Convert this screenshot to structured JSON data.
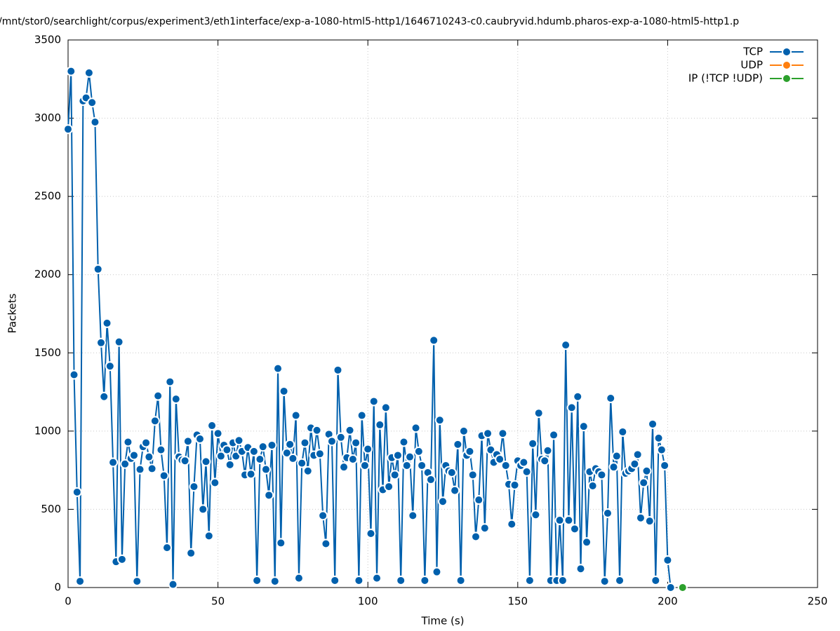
{
  "chart_data": {
    "type": "line",
    "title": "/mnt/stor0/searchlight/corpus/experiment3/eth1interface/exp-a-1080-html5-http1/1646710243-c0.caubryvid.hdumb.pharos-exp-a-1080-html5-http1.p",
    "x_label": "Time (s)",
    "y_label": "Packets",
    "xlim": [
      0,
      250
    ],
    "ylim": [
      0,
      3500
    ],
    "xticks": [
      0,
      50,
      100,
      150,
      200,
      250
    ],
    "yticks": [
      0,
      500,
      1000,
      1500,
      2000,
      2500,
      3000,
      3500
    ],
    "grid": true,
    "legend": "top-right",
    "series": [
      {
        "name": "TCP",
        "color": "#0060ad",
        "x": [
          0,
          1,
          2,
          3,
          4,
          5,
          6,
          7,
          8,
          9,
          10,
          11,
          12,
          13,
          14,
          15,
          16,
          17,
          18,
          19,
          20,
          21,
          22,
          23,
          24,
          25,
          26,
          27,
          28,
          29,
          30,
          31,
          32,
          33,
          34,
          35,
          36,
          37,
          38,
          39,
          40,
          41,
          42,
          43,
          44,
          45,
          46,
          47,
          48,
          49,
          50,
          51,
          52,
          53,
          54,
          55,
          56,
          57,
          58,
          59,
          60,
          61,
          62,
          63,
          64,
          65,
          66,
          67,
          68,
          69,
          70,
          71,
          72,
          73,
          74,
          75,
          76,
          77,
          78,
          79,
          80,
          81,
          82,
          83,
          84,
          85,
          86,
          87,
          88,
          89,
          90,
          91,
          92,
          93,
          94,
          95,
          96,
          97,
          98,
          99,
          100,
          101,
          102,
          103,
          104,
          105,
          106,
          107,
          108,
          109,
          110,
          111,
          112,
          113,
          114,
          115,
          116,
          117,
          118,
          119,
          120,
          121,
          122,
          123,
          124,
          125,
          126,
          127,
          128,
          129,
          130,
          131,
          132,
          133,
          134,
          135,
          136,
          137,
          138,
          139,
          140,
          141,
          142,
          143,
          144,
          145,
          146,
          147,
          148,
          149,
          150,
          151,
          152,
          153,
          154,
          155,
          156,
          157,
          158,
          159,
          160,
          161,
          162,
          163,
          164,
          165,
          166,
          167,
          168,
          169,
          170,
          171,
          172,
          173,
          174,
          175,
          176,
          177,
          178,
          179,
          180,
          181,
          182,
          183,
          184,
          185,
          186,
          187,
          188,
          189,
          190,
          191,
          192,
          193,
          194,
          195,
          196,
          197,
          198,
          199,
          200,
          201
        ],
        "values": [
          2930,
          3300,
          1360,
          610,
          40,
          3110,
          3130,
          3290,
          3100,
          2975,
          2035,
          1565,
          1220,
          1690,
          1415,
          800,
          165,
          1570,
          180,
          790,
          930,
          825,
          845,
          40,
          755,
          900,
          925,
          835,
          760,
          1065,
          1225,
          880,
          715,
          255,
          1315,
          20,
          1205,
          835,
          815,
          810,
          935,
          220,
          645,
          975,
          950,
          500,
          805,
          330,
          1035,
          670,
          985,
          840,
          910,
          880,
          785,
          925,
          840,
          940,
          870,
          720,
          895,
          725,
          870,
          45,
          820,
          900,
          755,
          590,
          910,
          40,
          1400,
          285,
          1255,
          860,
          915,
          825,
          1100,
          60,
          795,
          925,
          745,
          1020,
          845,
          1005,
          855,
          460,
          280,
          980,
          935,
          45,
          1390,
          960,
          770,
          830,
          1005,
          820,
          925,
          45,
          1100,
          780,
          885,
          345,
          1190,
          60,
          1040,
          625,
          1150,
          645,
          830,
          720,
          845,
          45,
          930,
          780,
          835,
          460,
          1020,
          870,
          780,
          45,
          735,
          690,
          1580,
          100,
          1070,
          550,
          780,
          745,
          735,
          620,
          915,
          45,
          1000,
          845,
          870,
          720,
          325,
          560,
          970,
          380,
          985,
          880,
          800,
          850,
          820,
          985,
          780,
          660,
          405,
          655,
          810,
          780,
          800,
          740,
          45,
          920,
          465,
          1115,
          820,
          810,
          875,
          45,
          975,
          45,
          430,
          45,
          1550,
          430,
          1150,
          375,
          1220,
          120,
          1030,
          290,
          740,
          650,
          760,
          740,
          720,
          40,
          475,
          1210,
          770,
          840,
          45,
          995,
          730,
          745,
          760,
          790,
          850,
          445,
          670,
          745,
          425,
          1045,
          45,
          955,
          880,
          780,
          175,
          0
        ]
      },
      {
        "name": "UDP",
        "color": "#ff7f0e",
        "x": [],
        "values": []
      },
      {
        "name": "IP (!TCP  !UDP)",
        "color": "#2ca02c",
        "x": [
          205
        ],
        "values": [
          0
        ]
      }
    ]
  }
}
